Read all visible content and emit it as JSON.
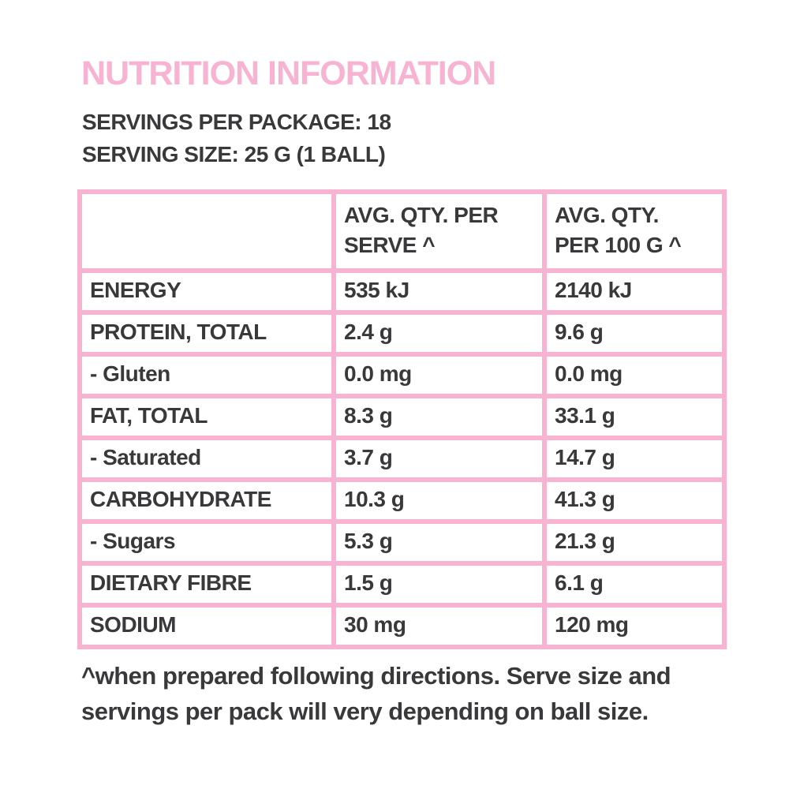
{
  "colors": {
    "pink": "#F8B3D3",
    "text": "#39393B",
    "bg": "#FFFFFF"
  },
  "title": "NUTRITION INFORMATION",
  "package_info": {
    "servings_per_package": "SERVINGS PER PACKAGE: 18",
    "serving_size": "SERVING SIZE: 25 G (1 BALL)"
  },
  "table": {
    "headers": {
      "nutrient": "",
      "per_serve": "AVG. QTY. PER\nSERVE ^",
      "per_100g": "AVG. QTY.\nPER 100 G ^"
    },
    "rows": [
      {
        "label": "ENERGY",
        "per_serve": "535 kJ",
        "per_100g": "2140 kJ"
      },
      {
        "label": "PROTEIN, TOTAL",
        "per_serve": "2.4 g",
        "per_100g": "9.6 g"
      },
      {
        "label": "- Gluten",
        "per_serve": "0.0 mg",
        "per_100g": "0.0 mg"
      },
      {
        "label": "FAT, TOTAL",
        "per_serve": "8.3 g",
        "per_100g": "33.1 g"
      },
      {
        "label": "- Saturated",
        "per_serve": "3.7 g",
        "per_100g": "14.7 g"
      },
      {
        "label": "CARBOHYDRATE",
        "per_serve": "10.3 g",
        "per_100g": "41.3 g"
      },
      {
        "label": "- Sugars",
        "per_serve": "5.3 g",
        "per_100g": "21.3 g"
      },
      {
        "label": "DIETARY FIBRE",
        "per_serve": "1.5 g",
        "per_100g": "6.1 g"
      },
      {
        "label": "SODIUM",
        "per_serve": "30 mg",
        "per_100g": "120 mg"
      }
    ]
  },
  "footnote": "^when prepared following directions. Serve size and servings per pack will very depending on ball size."
}
